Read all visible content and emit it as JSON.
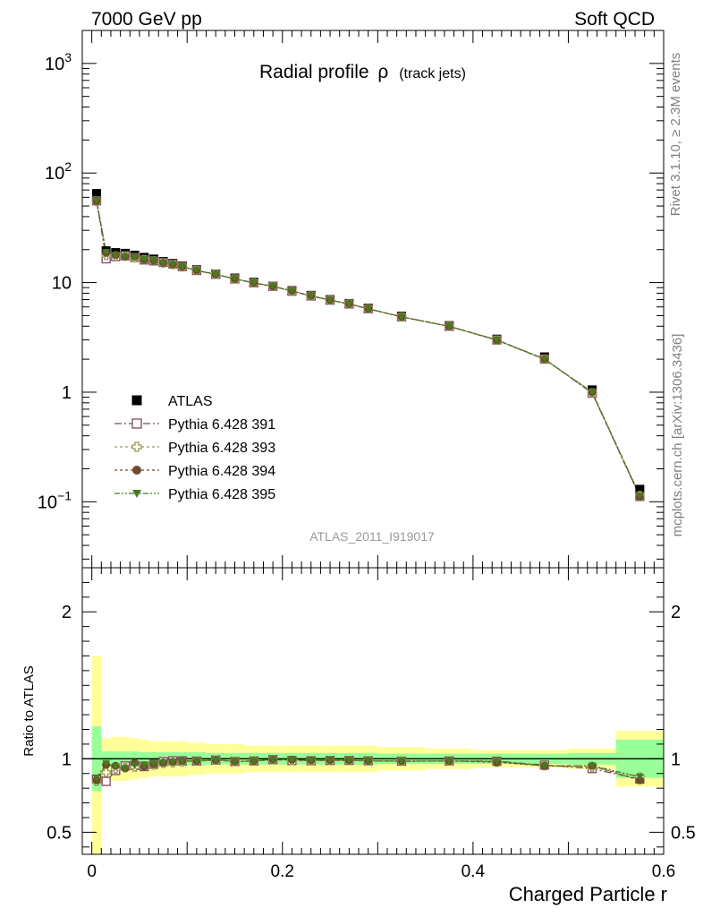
{
  "header": {
    "left": "7000 GeV pp",
    "right": "Soft QCD"
  },
  "side_labels": {
    "rivet": "Rivet 3.1.10, ≥ 2.3M events",
    "mcplots": "mcplots.cern.ch [arXiv:1306.3436]"
  },
  "chart_data": {
    "type": "line",
    "title": "Radial profile",
    "title_symbol": "ρ",
    "title_suffix": "(track jets)",
    "analysis_id": "ATLAS_2011_I919017",
    "xlabel": "Charged Particle r",
    "ratio_ylabel": "Ratio to ATLAS",
    "xlim": [
      -0.01,
      0.6
    ],
    "ylim_main": [
      0.025,
      2000
    ],
    "yscale_main": "log",
    "ylim_ratio": [
      0.35,
      2.3
    ],
    "x_ticks": [
      "0",
      "0.2",
      "0.4",
      "0.6"
    ],
    "main_y_ticks": [
      {
        "value": 0.1,
        "base": "10",
        "exp": "−1"
      },
      {
        "value": 1,
        "base": "1",
        "exp": ""
      },
      {
        "value": 10,
        "base": "10",
        "exp": ""
      },
      {
        "value": 100,
        "base": "10",
        "exp": "2"
      },
      {
        "value": 1000,
        "base": "10",
        "exp": "3"
      }
    ],
    "ratio_y_ticks": [
      "0.5",
      "1",
      "2"
    ],
    "x": [
      0.005,
      0.015,
      0.025,
      0.035,
      0.045,
      0.055,
      0.065,
      0.075,
      0.085,
      0.095,
      0.11,
      0.13,
      0.15,
      0.17,
      0.19,
      0.21,
      0.23,
      0.25,
      0.27,
      0.29,
      0.325,
      0.375,
      0.425,
      0.475,
      0.525,
      0.575
    ],
    "ratio_bands": {
      "edges": [
        0.0,
        0.01,
        0.02,
        0.03,
        0.04,
        0.05,
        0.06,
        0.07,
        0.08,
        0.09,
        0.1,
        0.12,
        0.14,
        0.16,
        0.18,
        0.2,
        0.22,
        0.24,
        0.26,
        0.28,
        0.3,
        0.35,
        0.4,
        0.45,
        0.5,
        0.55,
        0.6
      ],
      "stat_hw": [
        0.22,
        0.05,
        0.05,
        0.05,
        0.05,
        0.045,
        0.045,
        0.045,
        0.045,
        0.045,
        0.045,
        0.04,
        0.04,
        0.04,
        0.04,
        0.04,
        0.04,
        0.04,
        0.04,
        0.04,
        0.035,
        0.035,
        0.035,
        0.035,
        0.04,
        0.13
      ],
      "total_hw": [
        0.7,
        0.14,
        0.15,
        0.15,
        0.14,
        0.13,
        0.12,
        0.12,
        0.12,
        0.12,
        0.11,
        0.1,
        0.1,
        0.09,
        0.09,
        0.09,
        0.09,
        0.09,
        0.09,
        0.09,
        0.08,
        0.07,
        0.06,
        0.06,
        0.07,
        0.19
      ],
      "colors": {
        "total": "#ffff99",
        "stat": "#99ff99"
      }
    },
    "series": [
      {
        "name": "ATLAS",
        "marker": "square-filled",
        "color": "#000000",
        "values": [
          65,
          19.5,
          18.8,
          18.5,
          17.8,
          17,
          16.4,
          15.6,
          15,
          14.2,
          13.1,
          12,
          11,
          10.1,
          9.3,
          8.45,
          7.65,
          7,
          6.45,
          5.85,
          4.95,
          4.05,
          3.05,
          2.1,
          1.05,
          0.13
        ]
      },
      {
        "name": "Pythia 6.428 391",
        "marker": "square-open",
        "color": "#7f4860",
        "dash": "8,3,2,3",
        "values": [
          56,
          16.5,
          17.3,
          17.6,
          17.0,
          16.1,
          15.8,
          15.3,
          14.8,
          14.0,
          12.9,
          11.9,
          10.8,
          9.95,
          9.25,
          8.35,
          7.55,
          6.92,
          6.38,
          5.77,
          4.87,
          3.99,
          3.0,
          2.01,
          0.98,
          0.112
        ]
      },
      {
        "name": "Pythia 6.428 393",
        "marker": "cross-open",
        "color": "#9a9a50",
        "dash": "3,3",
        "values": [
          55,
          17.7,
          17.5,
          17.4,
          16.8,
          16.2,
          15.7,
          15.1,
          14.6,
          13.9,
          12.9,
          11.9,
          10.8,
          9.95,
          9.25,
          8.35,
          7.55,
          6.92,
          6.38,
          5.77,
          4.87,
          3.99,
          2.98,
          2.0,
          0.99,
          0.114
        ]
      },
      {
        "name": "Pythia 6.428 394",
        "marker": "circle-filled",
        "color": "#6b4d2d",
        "dash": "3,3",
        "values": [
          55.5,
          18.7,
          17.9,
          17.3,
          17.3,
          16.1,
          15.8,
          15.2,
          14.7,
          14.0,
          12.9,
          11.9,
          10.8,
          9.95,
          9.25,
          8.4,
          7.57,
          6.93,
          6.38,
          5.77,
          4.87,
          3.99,
          2.98,
          2.0,
          1.0,
          0.111
        ]
      },
      {
        "name": "Pythia 6.428 395",
        "marker": "triangle-down-filled",
        "color": "#4a7a1f",
        "dash": "6,2,2,2,2,2",
        "values": [
          56.5,
          18.9,
          17.8,
          17.3,
          17.0,
          16.3,
          15.9,
          15.2,
          14.7,
          14.0,
          12.9,
          11.9,
          10.8,
          9.95,
          9.25,
          8.4,
          7.57,
          6.93,
          6.38,
          5.77,
          4.87,
          3.99,
          3.0,
          2.0,
          1.0,
          0.114
        ]
      }
    ]
  }
}
